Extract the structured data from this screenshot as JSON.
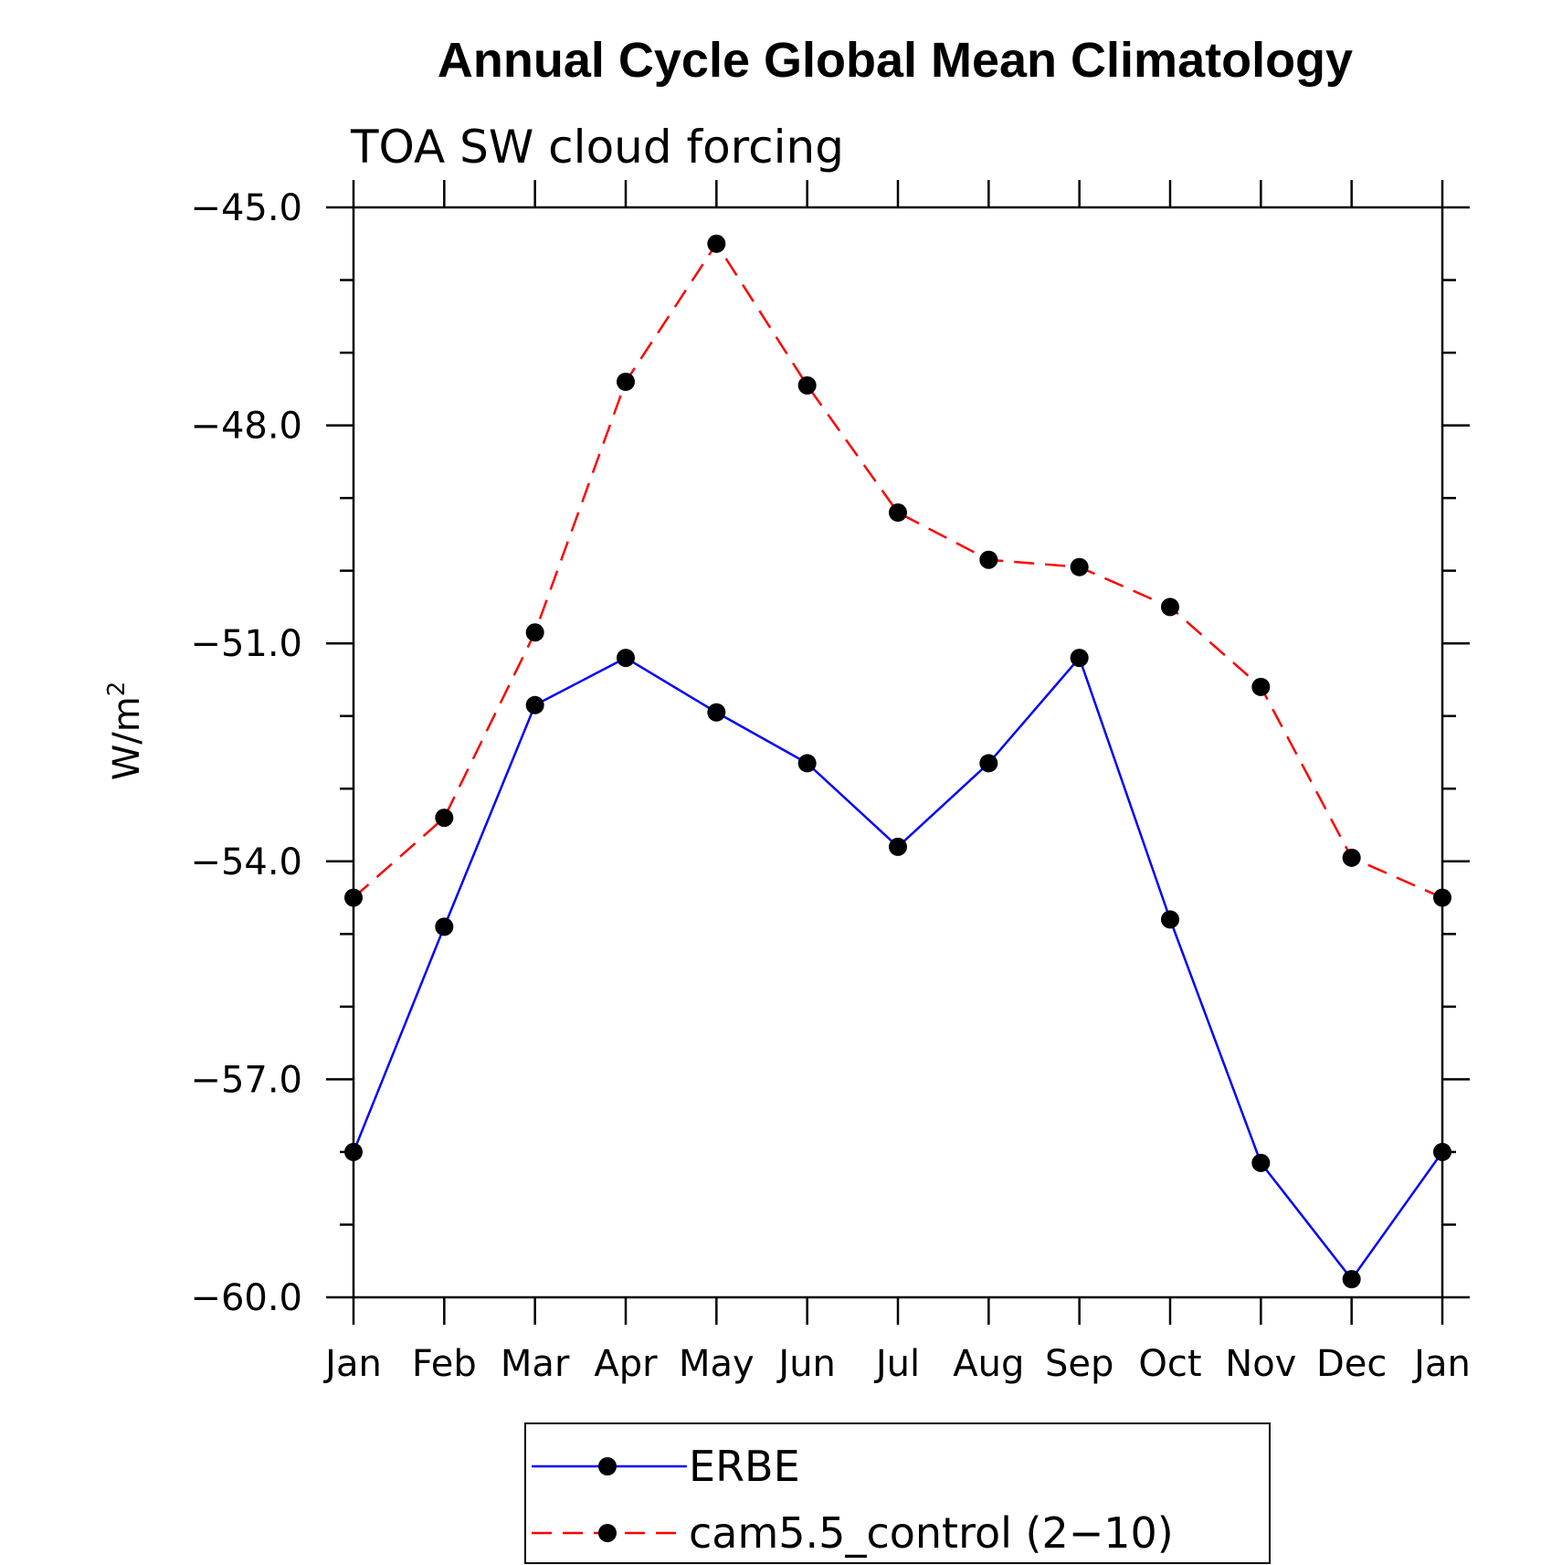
{
  "chart_data": {
    "type": "line",
    "title": "Annual Cycle Global Mean Climatology",
    "subtitle": "TOA SW cloud forcing",
    "xlabel": "",
    "ylabel": "W/m",
    "ylabel_superscript": "2",
    "categories": [
      "Jan",
      "Feb",
      "Mar",
      "Apr",
      "May",
      "Jun",
      "Jul",
      "Aug",
      "Sep",
      "Oct",
      "Nov",
      "Dec",
      "Jan"
    ],
    "ylim": [
      -60.0,
      -45.0
    ],
    "yticks": [
      -45.0,
      -48.0,
      -51.0,
      -54.0,
      -57.0,
      -60.0
    ],
    "ytick_labels": [
      "−45.0",
      "−48.0",
      "−51.0",
      "−54.0",
      "−57.0",
      "−60.0"
    ],
    "y_minor_step": 1.0,
    "legend_position": "bottom-center",
    "series": [
      {
        "name": "ERBE",
        "color": "#0000ff",
        "dash": "solid",
        "values": [
          -58.0,
          -54.9,
          -51.85,
          -51.2,
          -51.95,
          -52.65,
          -53.8,
          -52.65,
          -51.2,
          -54.8,
          -58.15,
          -59.75,
          -58.0
        ]
      },
      {
        "name": "cam5.5_control (2−10)",
        "color": "#ff0000",
        "dash": "dashed",
        "values": [
          -54.5,
          -53.4,
          -50.85,
          -47.4,
          -45.5,
          -47.45,
          -49.2,
          -49.85,
          -49.95,
          -50.5,
          -51.6,
          -53.95,
          -54.5
        ]
      }
    ],
    "marker_color": "#000000"
  }
}
